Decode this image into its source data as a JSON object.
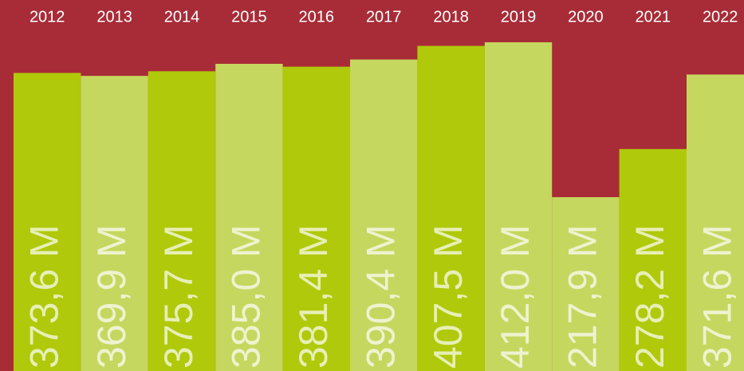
{
  "chart_data": {
    "type": "bar",
    "categories": [
      "2012",
      "2013",
      "2014",
      "2015",
      "2016",
      "2017",
      "2018",
      "2019",
      "2020",
      "2021",
      "2022"
    ],
    "values": [
      373.6,
      369.9,
      375.7,
      385.0,
      381.4,
      390.4,
      407.5,
      412.0,
      217.9,
      278.2,
      371.6
    ],
    "value_labels": [
      "373,6 M",
      "369,9 M",
      "375,7 M",
      "385,0 M",
      "381,4 M",
      "390,4 M",
      "407,5 M",
      "412,0 M",
      "217,9 M",
      "278,2 M",
      "371,6 M"
    ],
    "colors": [
      "#b0c90b",
      "#c6d75f",
      "#b0c90b",
      "#c6d75f",
      "#b0c90b",
      "#c6d75f",
      "#b0c90b",
      "#c6d75f",
      "#c6d75f",
      "#b0c90b",
      "#c6d75f"
    ],
    "background": "#a82c37",
    "ylim": [
      0,
      465
    ]
  }
}
